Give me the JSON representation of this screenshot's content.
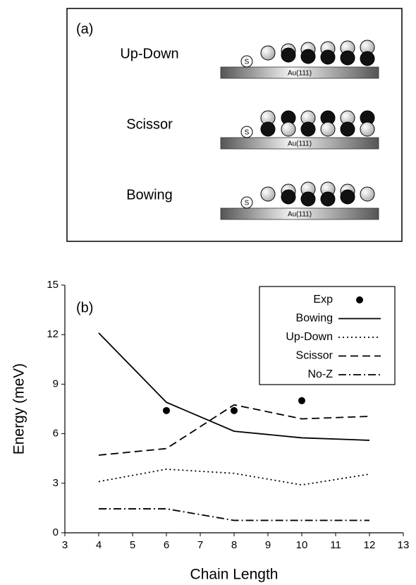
{
  "diagram": {
    "panel_label": "(a)",
    "rows": [
      {
        "label": "Up-Down",
        "anchor": "S",
        "substrate": "Au(111)"
      },
      {
        "label": "Scissor",
        "anchor": "S",
        "substrate": "Au(111)"
      },
      {
        "label": "Bowing",
        "anchor": "S",
        "substrate": "Au(111)"
      }
    ]
  },
  "chart_data": {
    "type": "line",
    "panel_label": "(b)",
    "x_label": "Chain Length",
    "y_label": "Energy (meV)",
    "xlim": [
      3,
      13
    ],
    "xticks": [
      3,
      4,
      5,
      6,
      7,
      8,
      9,
      10,
      11,
      12,
      13
    ],
    "ylim": [
      0,
      15
    ],
    "yticks": [
      0,
      3,
      6,
      9,
      12,
      15
    ],
    "legend": "upper right",
    "series": [
      {
        "name": "Exp",
        "style": "marker",
        "color": "#000000",
        "x": [
          6,
          8,
          10
        ],
        "values": [
          7.4,
          7.4,
          8.0
        ]
      },
      {
        "name": "Bowing",
        "style": "solid",
        "color": "#000000",
        "x": [
          4,
          6,
          8,
          10,
          12
        ],
        "values": [
          12.1,
          7.9,
          6.15,
          5.75,
          5.6
        ]
      },
      {
        "name": "Up-Down",
        "style": "dotted",
        "color": "#000000",
        "x": [
          4,
          6,
          8,
          10,
          12
        ],
        "values": [
          3.1,
          3.85,
          3.6,
          2.9,
          3.55
        ]
      },
      {
        "name": "Scissor",
        "style": "dashed",
        "color": "#000000",
        "x": [
          4,
          6,
          8,
          10,
          12
        ],
        "values": [
          4.7,
          5.1,
          7.75,
          6.9,
          7.05
        ]
      },
      {
        "name": "No-Z",
        "style": "dashdot",
        "color": "#000000",
        "x": [
          4,
          6,
          8,
          10,
          12
        ],
        "values": [
          1.45,
          1.45,
          0.75,
          0.75,
          0.75
        ]
      }
    ]
  }
}
